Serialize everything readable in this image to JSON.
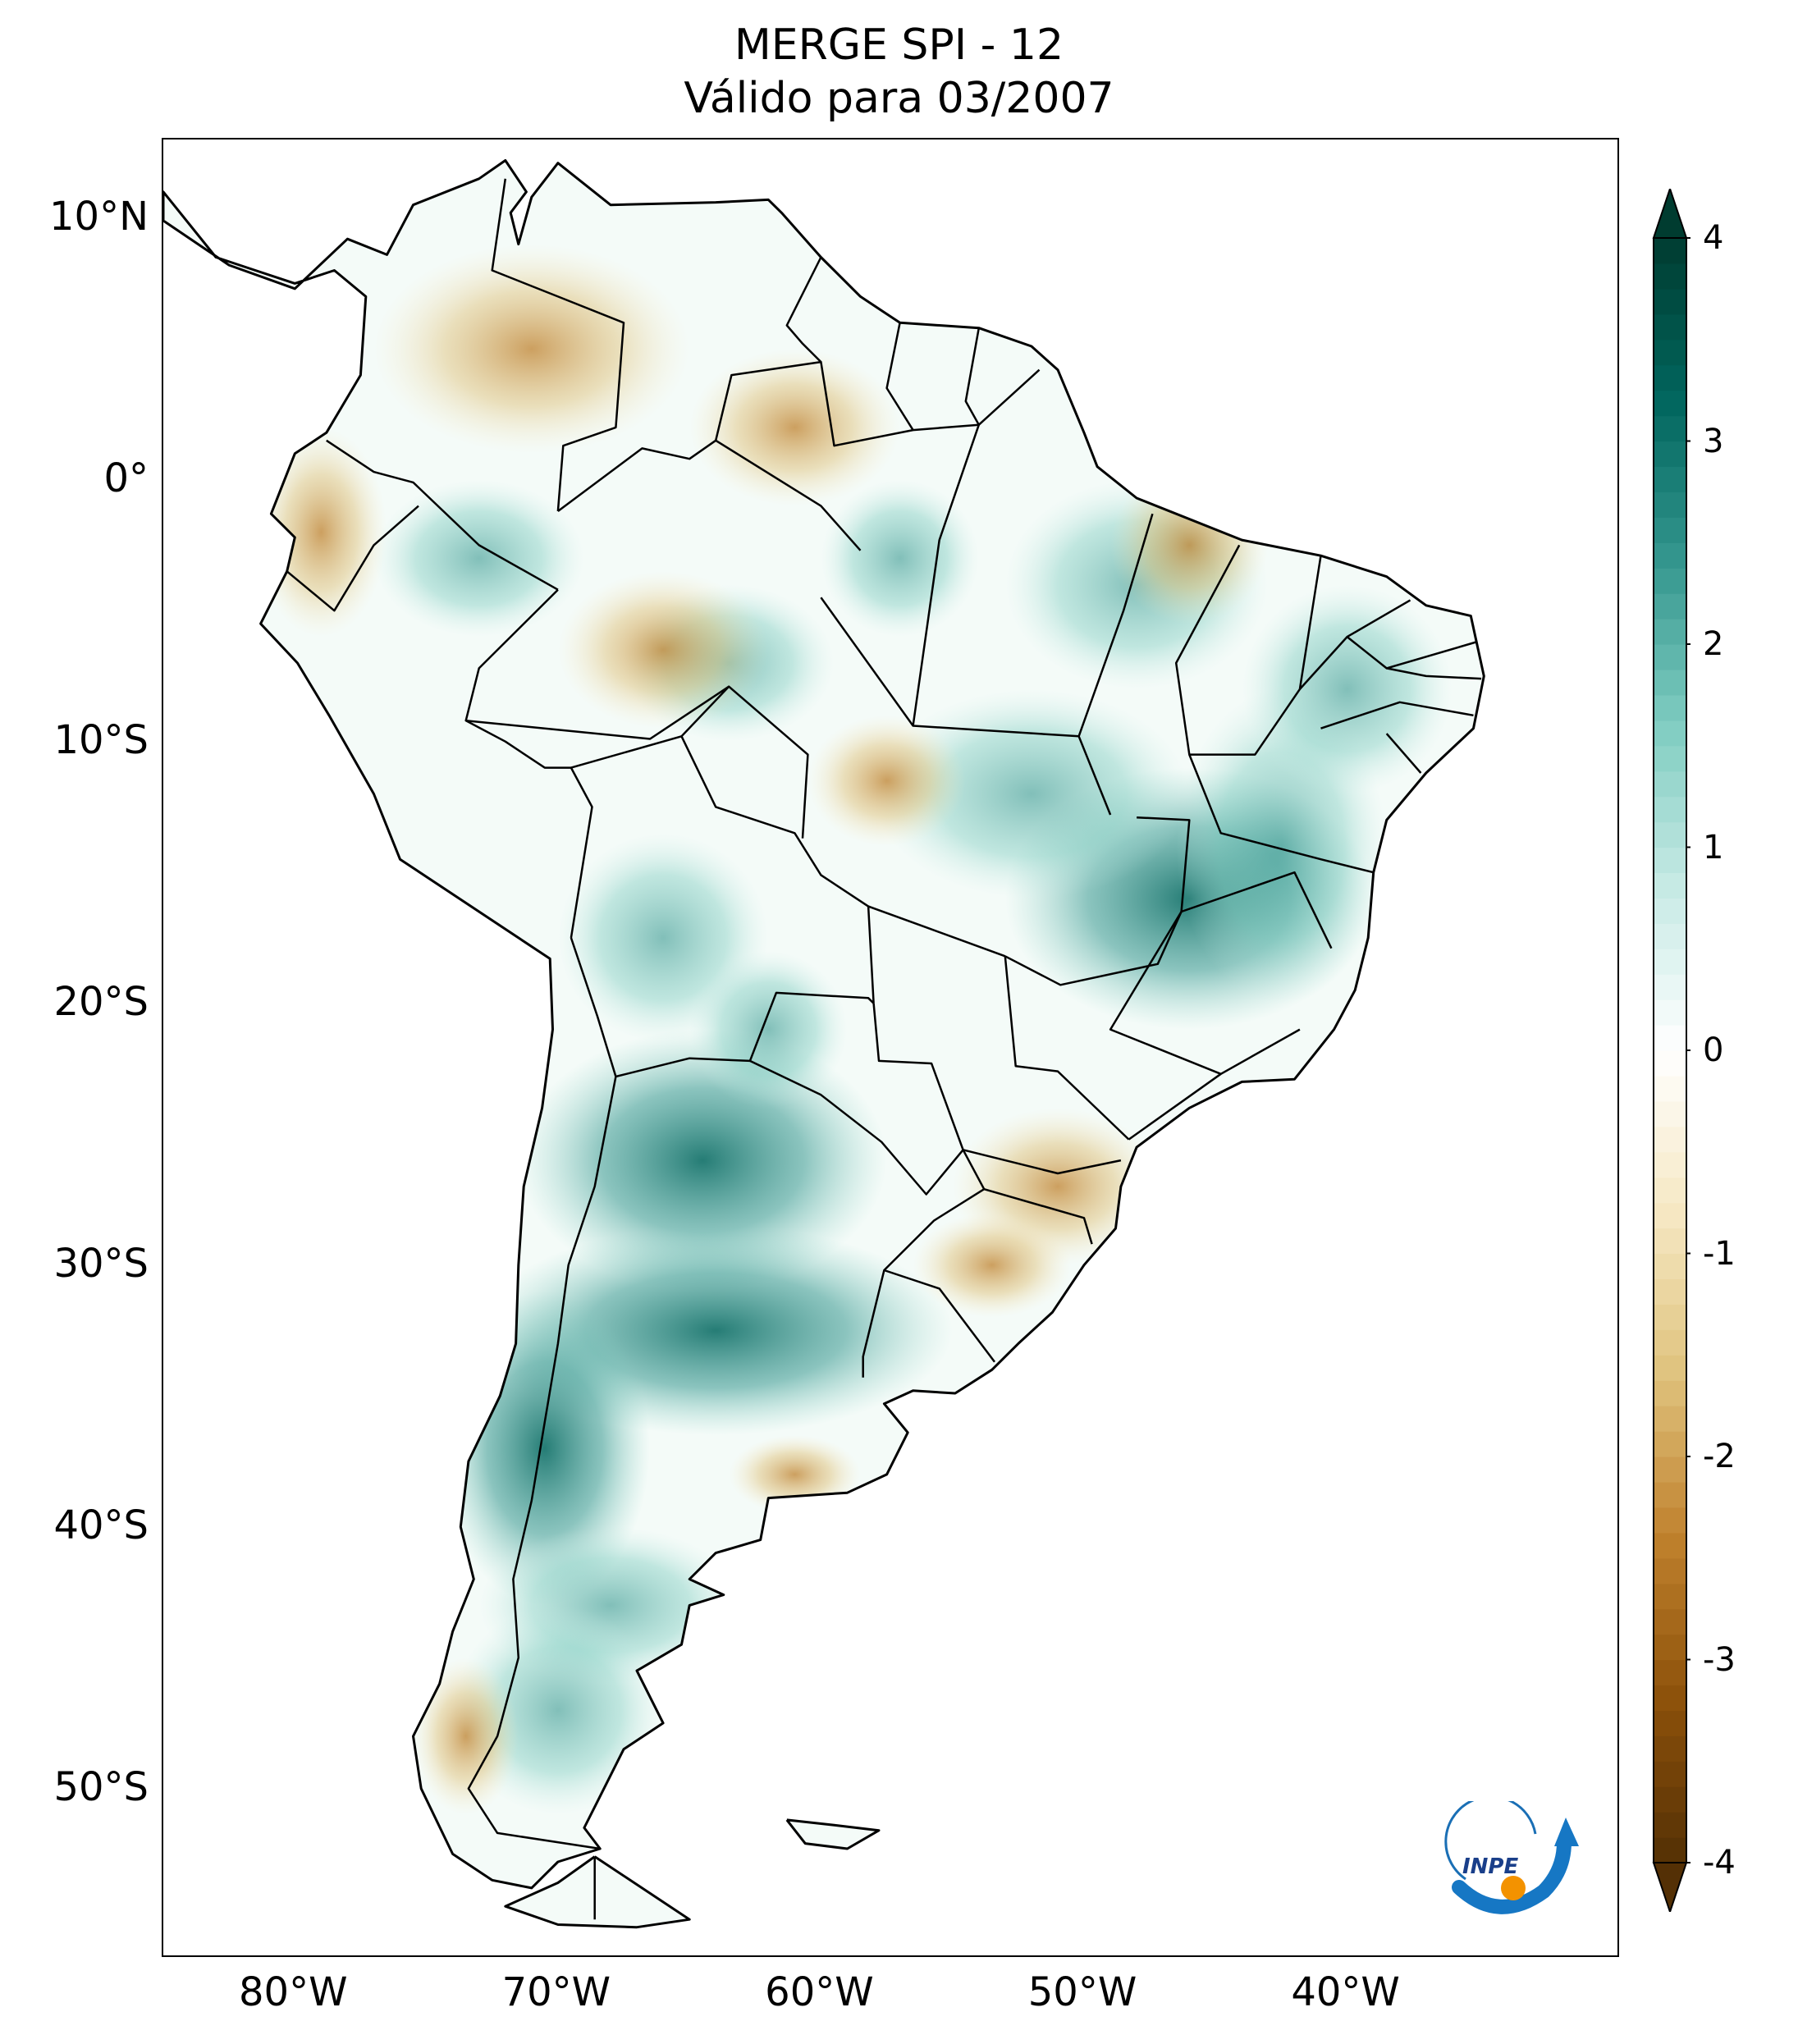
{
  "title": "MERGE   SPI - 12",
  "subtitle": "Válido para 03/2007",
  "map": {
    "lat_labels": [
      {
        "text": "10°N",
        "lat": 10
      },
      {
        "text": "0°",
        "lat": 0
      },
      {
        "text": "10°S",
        "lat": -10
      },
      {
        "text": "20°S",
        "lat": -20
      },
      {
        "text": "30°S",
        "lat": -30
      },
      {
        "text": "40°S",
        "lat": -40
      },
      {
        "text": "50°S",
        "lat": -50
      }
    ],
    "lon_labels": [
      {
        "text": "80°W",
        "lon": -80
      },
      {
        "text": "70°W",
        "lon": -70
      },
      {
        "text": "60°W",
        "lon": -60
      },
      {
        "text": "50°W",
        "lon": -50
      },
      {
        "text": "40°W",
        "lon": -40
      }
    ],
    "extent": {
      "lon_min": -85,
      "lon_max": -29.6,
      "lat_min": -56.5,
      "lat_max": 13
    },
    "land_color": "#f4fbf8",
    "border_color": "#000000"
  },
  "colorbar": {
    "ticks": [
      "4",
      "3",
      "2",
      "1",
      "0",
      "-1",
      "-2",
      "-3",
      "-4"
    ],
    "min": -4,
    "max": 4,
    "extend": "both",
    "colors": [
      "#543005",
      "#8c510a",
      "#bf812d",
      "#dfc27d",
      "#f6e8c3",
      "#ffffff",
      "#c7eae5",
      "#80cdc1",
      "#35978f",
      "#01665e",
      "#003c30"
    ]
  },
  "logo": {
    "text": "INPE"
  }
}
